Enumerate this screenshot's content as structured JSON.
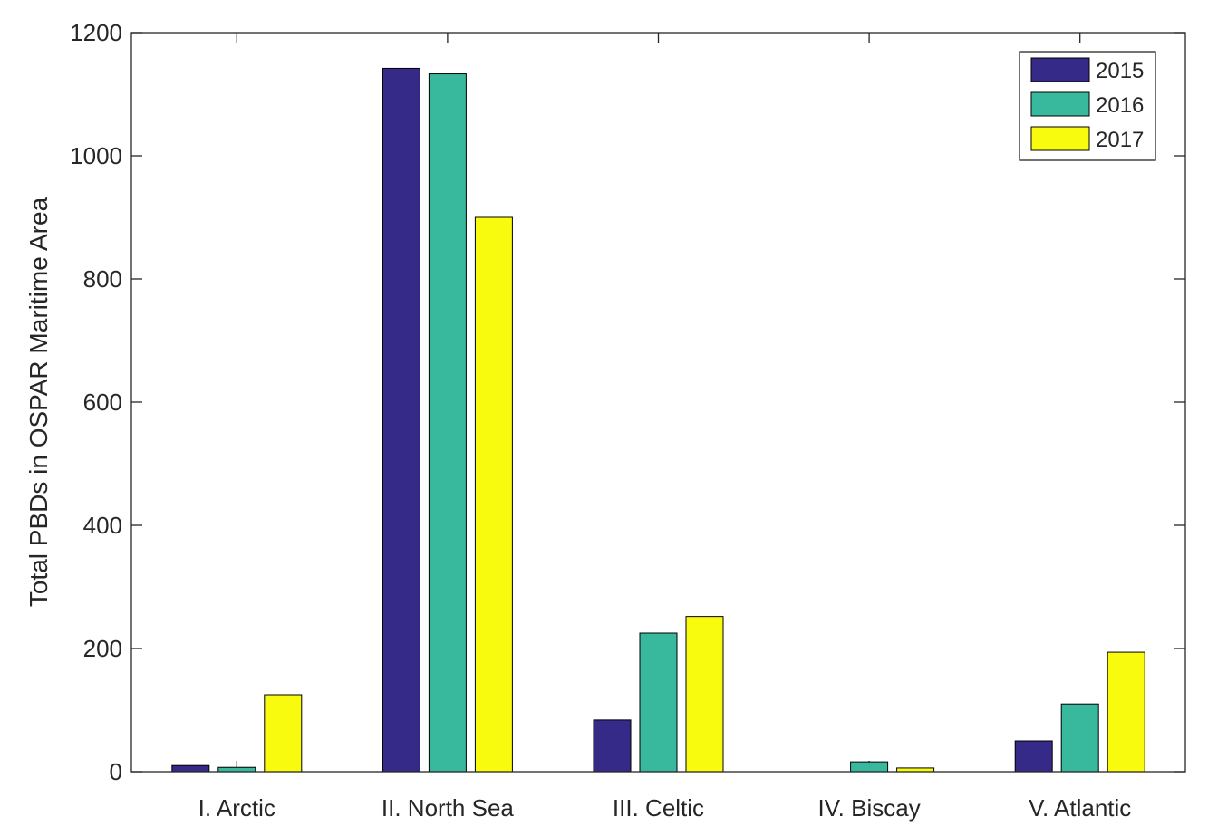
{
  "chart_data": {
    "type": "bar",
    "title": "",
    "xlabel": "",
    "ylabel": "Total PBDs in OSPAR Maritime Area",
    "categories": [
      "I. Arctic",
      "II. North Sea",
      "III. Celtic",
      "IV. Biscay",
      "V. Atlantic"
    ],
    "series": [
      {
        "name": "2015",
        "color": "#352a87",
        "values": [
          10,
          1142,
          84,
          0,
          50
        ]
      },
      {
        "name": "2016",
        "color": "#38b99e",
        "values": [
          7,
          1133,
          225,
          16,
          110
        ]
      },
      {
        "name": "2017",
        "color": "#f9fb0e",
        "values": [
          125,
          900,
          252,
          6,
          194
        ]
      }
    ],
    "ylim": [
      0,
      1200
    ],
    "yticks": [
      0,
      200,
      400,
      600,
      800,
      1000,
      1200
    ],
    "grid": false,
    "legend_position": "top-right"
  }
}
